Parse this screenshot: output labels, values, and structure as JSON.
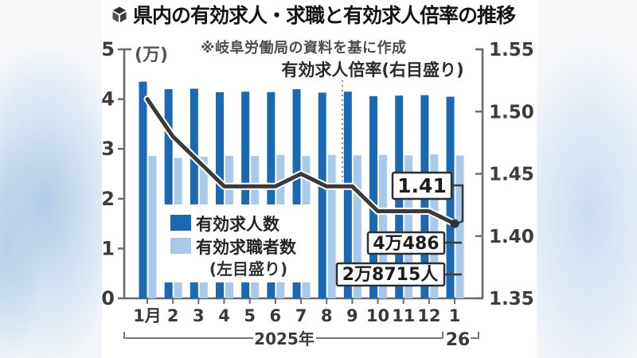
{
  "header": {
    "title": "県内の有効求人・求職と有効求人倍率の推移",
    "icon": "cube-logo-icon",
    "note": "※岐阜労働局の資料を基に作成"
  },
  "chart_data": {
    "type": "bar",
    "subtype": "grouped-bars-with-line",
    "title": "県内の有効求人・求職と有効求人倍率の推移",
    "source_note": "※岐阜労働局の資料を基に作成",
    "categories": [
      "1月",
      "2",
      "3",
      "4",
      "5",
      "6",
      "7",
      "8",
      "9",
      "10",
      "11",
      "12",
      "1"
    ],
    "x_groups": [
      {
        "label": "2025年",
        "from": 0,
        "to": 11
      },
      {
        "label": "26",
        "from": 12,
        "to": 12
      }
    ],
    "left_axis": {
      "unit": "(万)",
      "ticks": [
        "0",
        "1",
        "2",
        "3",
        "4",
        "5"
      ],
      "range": [
        0,
        5
      ]
    },
    "right_axis": {
      "ticks": [
        "1.35",
        "1.40",
        "1.45",
        "1.50",
        "1.55"
      ],
      "range": [
        1.35,
        1.55
      ]
    },
    "grid": "off",
    "legend": {
      "position": "inside-lower-left",
      "items": [
        {
          "label": "有効求人数",
          "color": "#1b6ab1"
        },
        {
          "label": "有効求職者数",
          "color": "#a9c9e9"
        }
      ],
      "note": "(左目盛り)"
    },
    "line_label": "有効求人倍率(右目盛り)",
    "series": [
      {
        "name": "有効求人数",
        "type": "bar",
        "axis": "left",
        "color": "#1b6ab1",
        "values": [
          4.35,
          4.2,
          4.21,
          4.14,
          4.15,
          4.14,
          4.2,
          4.13,
          4.15,
          4.06,
          4.07,
          4.08,
          4.05
        ]
      },
      {
        "name": "有効求職者数",
        "type": "bar",
        "axis": "left",
        "color": "#a9c9e9",
        "values": [
          2.86,
          2.82,
          2.84,
          2.86,
          2.86,
          2.88,
          2.86,
          2.88,
          2.87,
          2.88,
          2.87,
          2.89,
          2.87
        ]
      },
      {
        "name": "有効求人倍率",
        "type": "line",
        "axis": "right",
        "color": "#3a3a3a",
        "values": [
          1.51,
          1.48,
          1.46,
          1.44,
          1.44,
          1.44,
          1.45,
          1.44,
          1.44,
          1.42,
          1.42,
          1.42,
          1.41
        ]
      }
    ],
    "annotations": [
      {
        "text": "1.41",
        "target": "ratio-line-last-point"
      },
      {
        "text": "4万486",
        "target": "last-month-job-openings"
      },
      {
        "text": "2万8715人",
        "target": "last-month-job-seekers"
      }
    ],
    "colors": {
      "bar_dark": "#1b6ab1",
      "bar_light": "#a9c9e9",
      "line": "#3a3a3a",
      "axis": "#6b6b6b"
    }
  }
}
